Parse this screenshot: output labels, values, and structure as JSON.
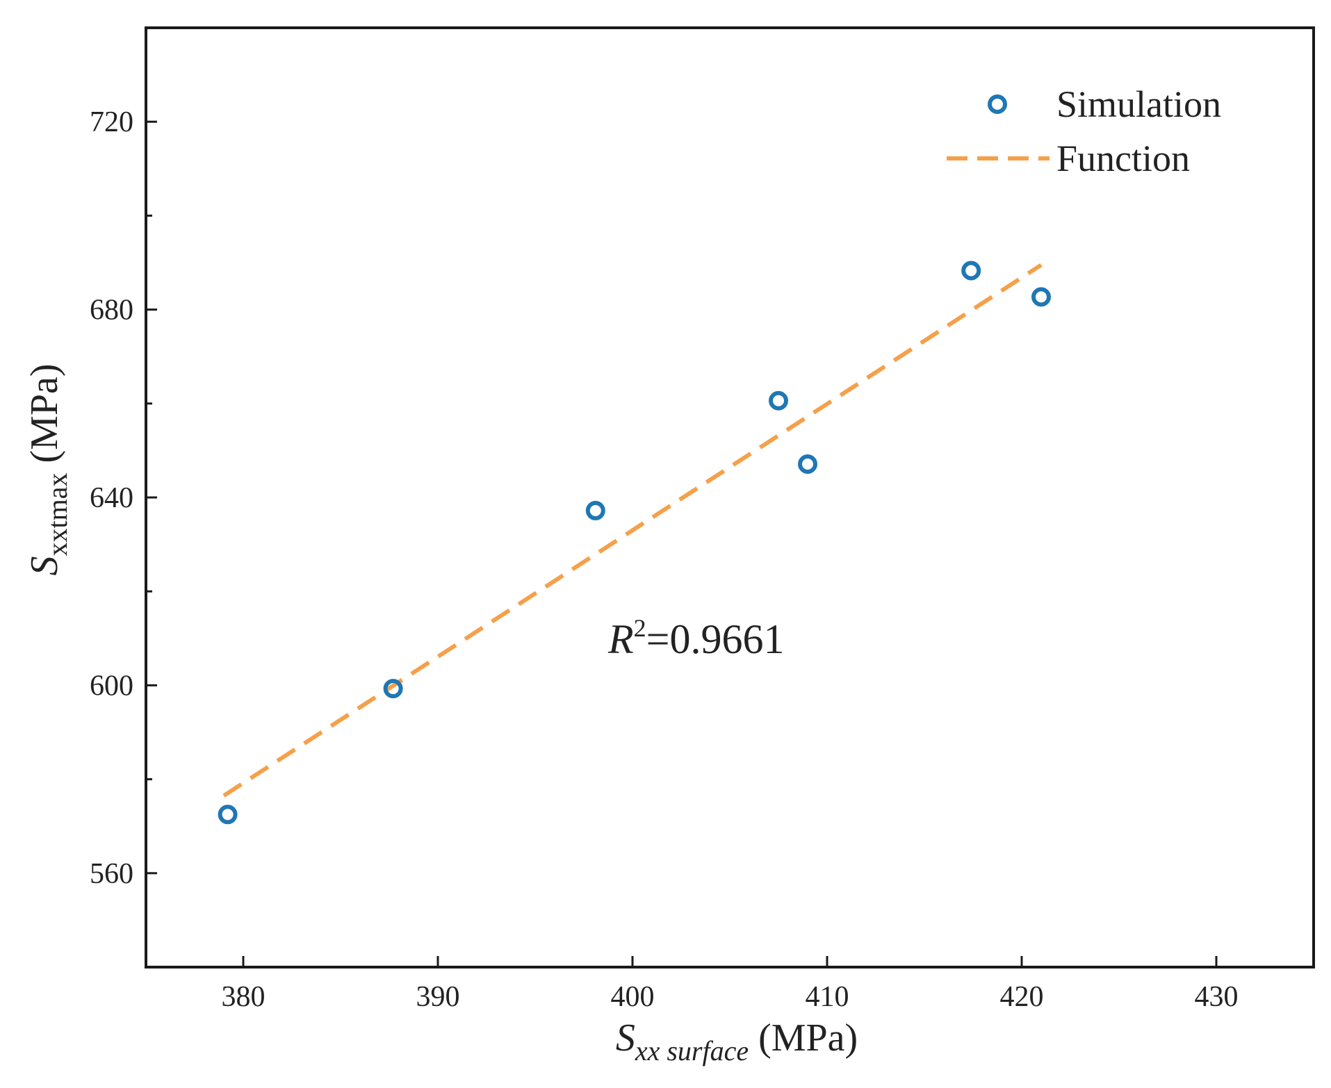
{
  "chart_data": {
    "type": "scatter",
    "title": "",
    "xlabel": {
      "symbol": "S",
      "subscript": "xx surface",
      "unit": " (MPa)"
    },
    "ylabel": {
      "symbol": "S",
      "subscript": "xxtmax",
      "unit": " (MPa)"
    },
    "xlim": [
      375,
      435
    ],
    "ylim": [
      540,
      740
    ],
    "xticks": [
      380,
      390,
      400,
      410,
      420,
      430
    ],
    "yticks": [
      560,
      600,
      640,
      680,
      720
    ],
    "xtick_labels": [
      "380",
      "390",
      "400",
      "410",
      "420",
      "430"
    ],
    "ytick_labels": [
      "560",
      "600",
      "640",
      "680",
      "720"
    ],
    "series": [
      {
        "name": "Simulation",
        "kind": "scatter",
        "marker": "open-circle",
        "color": "#1f77b4",
        "x": [
          379.2,
          387.7,
          398.1,
          407.5,
          409.0,
          417.4,
          421.0
        ],
        "y": [
          572.5,
          599.3,
          637.2,
          660.6,
          647.1,
          688.3,
          682.7
        ]
      },
      {
        "name": "Function",
        "kind": "line",
        "style": "dashed",
        "color": "#f5a04a",
        "x": [
          379.0,
          421.0
        ],
        "y": [
          576.5,
          689.5
        ]
      }
    ],
    "legend": {
      "position": "top-right",
      "entries": [
        "Simulation",
        "Function"
      ]
    },
    "annotation": {
      "symbol": "R",
      "superscript": "2",
      "text": "=0.9661"
    },
    "grid": false
  }
}
